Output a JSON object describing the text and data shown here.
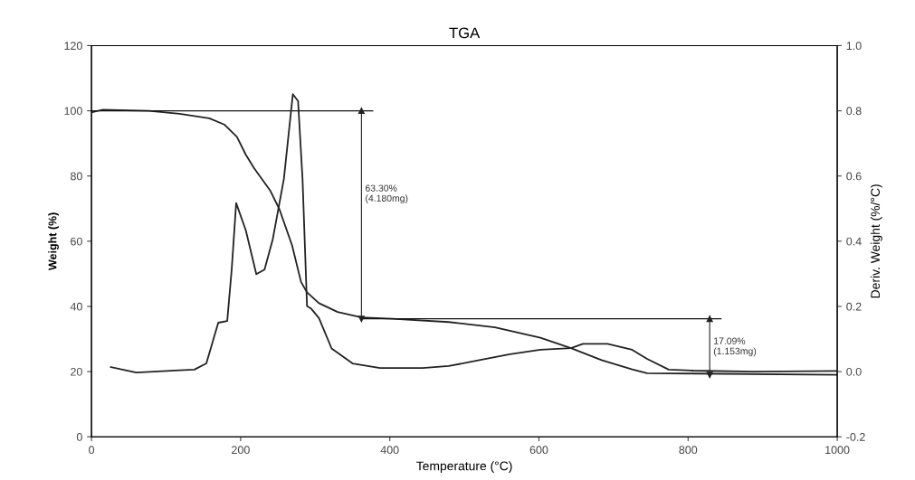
{
  "chart_data": {
    "type": "line",
    "title": "TGA",
    "xlabel": "Temperature (°C)",
    "ylabel": "Weight (%)",
    "y2label": "Deriv. Weight (%/°C)",
    "series": [
      {
        "color": "#222222",
        "x": [
          0,
          15,
          77,
          118,
          158,
          178,
          195,
          207,
          218,
          240,
          252,
          269,
          281,
          289,
          305,
          330,
          362,
          403,
          479,
          541,
          602,
          643,
          684,
          725,
          745,
          807,
          1000
        ],
        "values": [
          99.5,
          100.3,
          100,
          99.1,
          97.7,
          95.8,
          92,
          86.5,
          82.4,
          75.4,
          69.8,
          58.7,
          47.5,
          44.3,
          41,
          38.3,
          36.6,
          36.2,
          35.2,
          33.6,
          30.4,
          27.2,
          23.5,
          20.7,
          19.5,
          19.4,
          19.0
        ]
      },
      {
        "color": "#222222",
        "axis": "y2",
        "x": [
          26,
          60,
          118,
          138,
          154,
          170,
          182,
          188,
          194,
          207,
          221,
          232,
          243,
          258,
          270,
          277,
          283,
          289,
          295,
          305,
          322,
          350,
          387,
          444,
          479,
          520,
          561,
          602,
          643,
          659,
          692,
          725,
          745,
          774,
          807,
          889,
          1000
        ],
        "values": [
          0.014,
          -0.003,
          0.004,
          0.006,
          0.025,
          0.15,
          0.155,
          0.313,
          0.517,
          0.433,
          0.299,
          0.313,
          0.405,
          0.591,
          0.851,
          0.83,
          0.591,
          0.201,
          0.192,
          0.164,
          0.071,
          0.025,
          0.011,
          0.011,
          0.017,
          0.035,
          0.053,
          0.067,
          0.072,
          0.085,
          0.085,
          0.067,
          0.039,
          0.006,
          0.003,
          0.0,
          0.002
        ]
      }
    ],
    "xlim": [
      0,
      1000
    ],
    "xticks": [
      0,
      200,
      400,
      600,
      800,
      1000
    ],
    "ylim": [
      0,
      120
    ],
    "yticks": [
      0,
      20,
      40,
      60,
      80,
      100,
      120
    ],
    "y2lim": [
      -0.2,
      1.0
    ],
    "y2ticks": [
      -0.2,
      {
        "value": 0,
        "label": "0.0"
      },
      0.2,
      0.4,
      0.6,
      0.8,
      {
        "value": 1,
        "label": "1.0"
      }
    ],
    "ref_lines": [
      {
        "axis": "y",
        "value": 100
      },
      {
        "axis": "y",
        "value": 36.2
      }
    ],
    "annotations": [
      "63.30%\n(4.180mg)",
      "17.09%\n(1.153mg)"
    ],
    "grid": false,
    "legend": false,
    "line_style": "solid",
    "marker": "none"
  }
}
